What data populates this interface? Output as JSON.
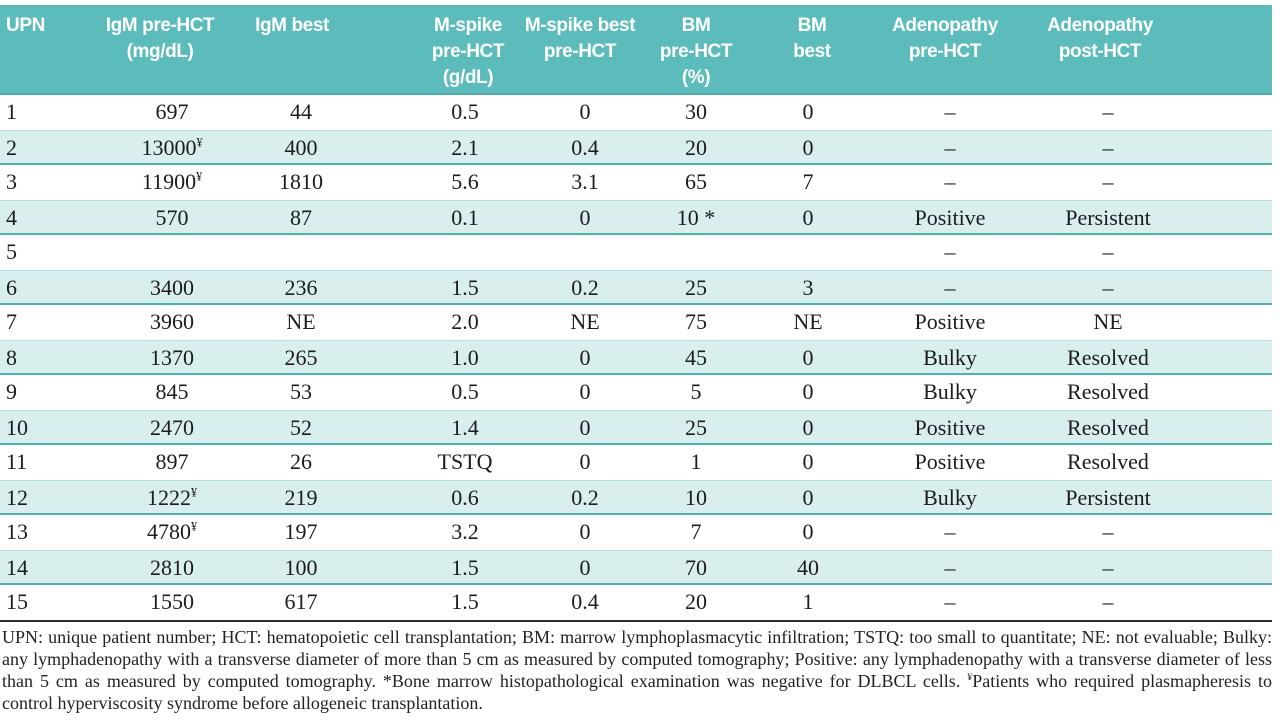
{
  "colors": {
    "header_teal": "#5cbcbc",
    "header_teal_dark": "#4fa9a9",
    "stripe": "#d8efee",
    "stripe_top_line": "#b2dedd",
    "stripe_border": "#4fb0b0",
    "divider_rule": "#2a2a2a",
    "header_text": "#ffffff",
    "body_text": "#1c1c1c"
  },
  "table": {
    "columns": [
      {
        "id": "upn",
        "label": "UPN"
      },
      {
        "id": "igm-pre-hct",
        "label": "IgM pre-HCT\n(mg/dL)"
      },
      {
        "id": "igm-best",
        "label": "IgM best"
      },
      {
        "id": "mspike-pre-hct",
        "label": "M-spike\npre-HCT\n(g/dL)"
      },
      {
        "id": "mspike-best-pre-hct",
        "label": "M-spike best\npre-HCT"
      },
      {
        "id": "bm-pre-hct",
        "label": "BM\npre-HCT\n(%)"
      },
      {
        "id": "bm-best",
        "label": "BM\nbest"
      },
      {
        "id": "adenopathy-pre-hct",
        "label": "Adenopathy\npre-HCT"
      },
      {
        "id": "adenopathy-post-hct",
        "label": "Adenopathy\npost-HCT"
      }
    ],
    "rows": [
      [
        "1",
        "697",
        "44",
        "0.5",
        "0",
        "30",
        "0",
        "–",
        "–"
      ],
      [
        "2",
        {
          "t": "13000",
          "sup": "¥"
        },
        "400",
        "2.1",
        "0.4",
        "20",
        "0",
        "–",
        "–"
      ],
      [
        "3",
        {
          "t": "11900",
          "sup": "¥"
        },
        "1810",
        "5.6",
        "3.1",
        "65",
        "7",
        "–",
        "–"
      ],
      [
        "4",
        "570",
        "87",
        "0.1",
        "0",
        "10 *",
        "0",
        "Positive",
        "Persistent"
      ],
      [
        "5",
        "",
        "",
        "",
        "",
        "",
        "",
        "–",
        "–"
      ],
      [
        "6",
        "3400",
        "236",
        "1.5",
        "0.2",
        "25",
        "3",
        "–",
        "–"
      ],
      [
        "7",
        "3960",
        "NE",
        "2.0",
        "NE",
        "75",
        "NE",
        "Positive",
        "NE"
      ],
      [
        "8",
        "1370",
        "265",
        "1.0",
        "0",
        "45",
        "0",
        "Bulky",
        "Resolved"
      ],
      [
        "9",
        "845",
        "53",
        "0.5",
        "0",
        "5",
        "0",
        "Bulky",
        "Resolved"
      ],
      [
        "10",
        "2470",
        "52",
        "1.4",
        "0",
        "25",
        "0",
        "Positive",
        "Resolved"
      ],
      [
        "11",
        "897",
        "26",
        "TSTQ",
        "0",
        "1",
        "0",
        "Positive",
        "Resolved"
      ],
      [
        "12",
        {
          "t": "1222",
          "sup": "¥"
        },
        "219",
        "0.6",
        "0.2",
        "10",
        "0",
        "Bulky",
        "Persistent"
      ],
      [
        "13",
        {
          "t": "4780",
          "sup": "¥"
        },
        "197",
        "3.2",
        "0",
        "7",
        "0",
        "–",
        "–"
      ],
      [
        "14",
        "2810",
        "100",
        "1.5",
        "0",
        "70",
        "40",
        "–",
        "–"
      ],
      [
        "15",
        "1550",
        "617",
        "1.5",
        "0.4",
        "20",
        "1",
        "–",
        "–"
      ]
    ]
  },
  "footnote": {
    "parts": [
      {
        "text": "UPN: unique patient number; HCT: hematopoietic cell transplantation; BM: marrow lymphoplasmacytic infiltration; TSTQ: too small to quantitate; NE: not evaluable; Bulky: any lymphadenopathy with a transverse diameter of more than 5 cm as measured by computed tomography; Positive: any lymphadenopathy with a transverse diameter of less than 5 cm as measured by computed tomography. *Bone marrow histopathological examination was negative for DLBCL cells. "
      },
      {
        "sup": "¥"
      },
      {
        "text": "Patients who required plasmapheresis to control hyperviscosity syndrome before allogeneic transplantation."
      }
    ]
  }
}
